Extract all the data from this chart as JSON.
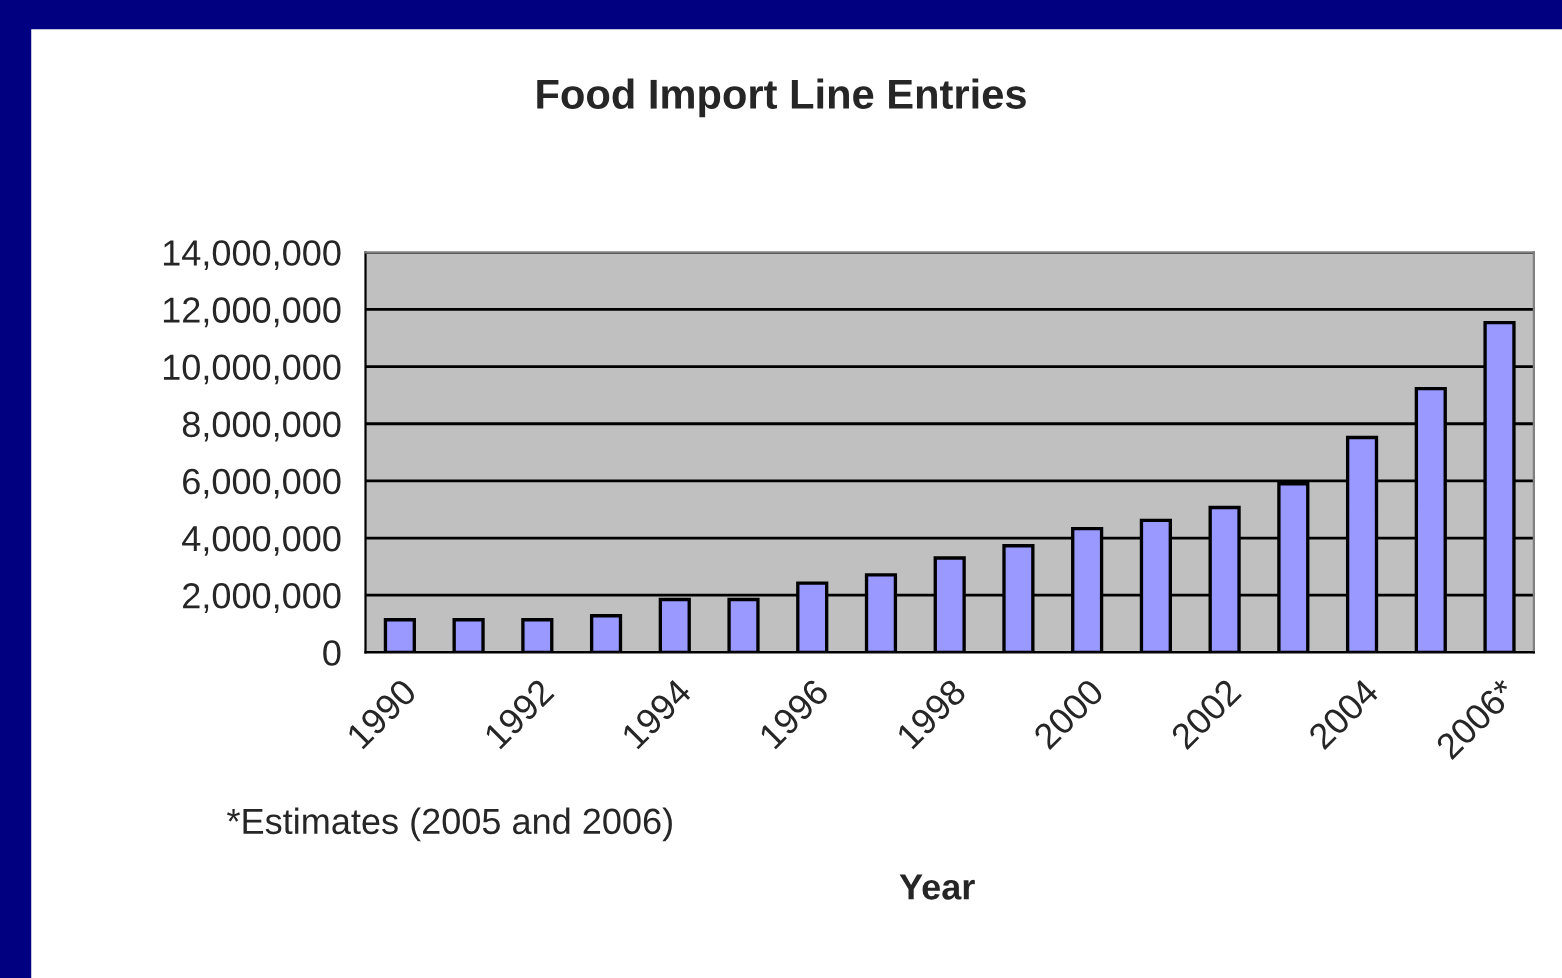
{
  "chart_data": {
    "type": "bar",
    "title": "Food Import Line Entries",
    "xlabel": "Year",
    "categories": [
      "1990",
      null,
      "1992",
      null,
      "1994",
      null,
      "1996",
      null,
      "1998",
      null,
      "2000",
      null,
      "2002",
      null,
      "2004",
      null,
      "2006*"
    ],
    "values": [
      1140000,
      1140000,
      1140000,
      1280000,
      1850000,
      1850000,
      2420000,
      2710000,
      3300000,
      3730000,
      4330000,
      4620000,
      5070000,
      5900000,
      7520000,
      9230000,
      11540000
    ],
    "color": "#9999ff",
    "ylim": [
      0,
      14000000
    ],
    "yticks": [
      {
        "value": 0,
        "label": "0"
      },
      {
        "value": 2000000,
        "label": "2,000,000"
      },
      {
        "value": 4000000,
        "label": "4,000,000"
      },
      {
        "value": 6000000,
        "label": "6,000,000"
      },
      {
        "value": 8000000,
        "label": "8,000,000"
      },
      {
        "value": 10000000,
        "label": "10,000,000"
      },
      {
        "value": 12000000,
        "label": "12,000,000"
      },
      {
        "value": 14000000,
        "label": "14,000,000"
      }
    ],
    "grid": "y",
    "annotations": [
      "*Estimates (2005 and 2006)"
    ]
  }
}
